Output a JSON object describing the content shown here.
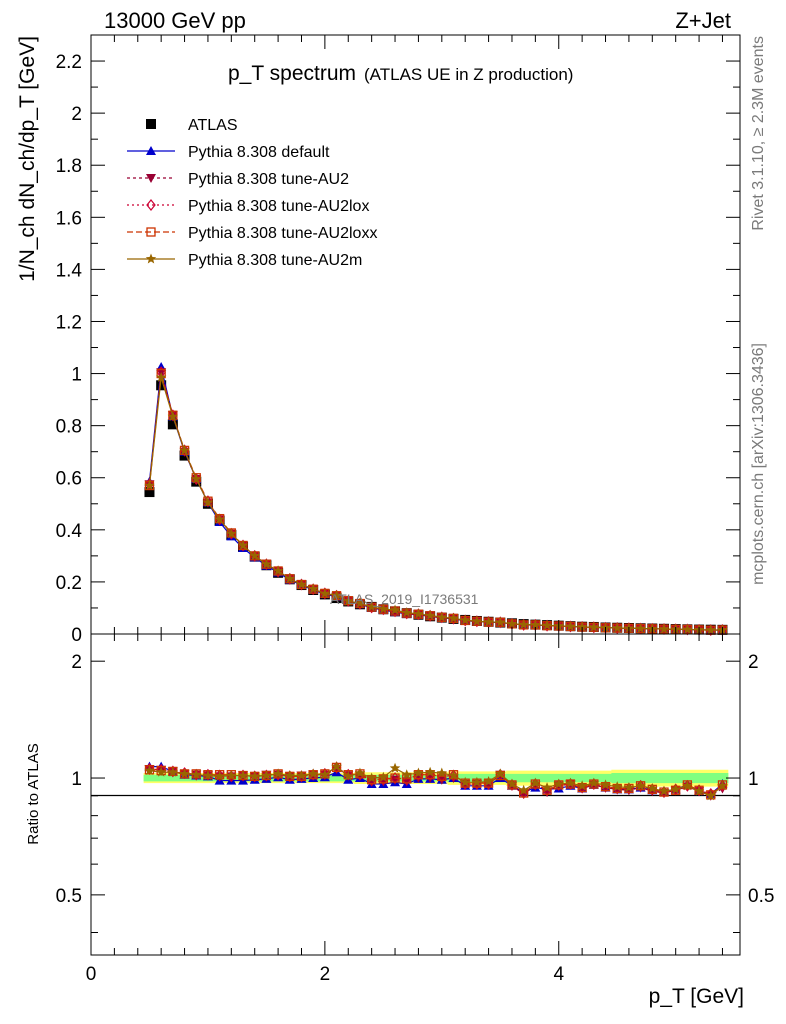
{
  "header": {
    "left": "13000 GeV pp",
    "right": "Z+Jet"
  },
  "side": {
    "upper": "Rivet 3.1.10, ≥ 2.3M events",
    "lower": "mcplots.cern.ch [arXiv:1306.3436]"
  },
  "watermark": "ATLAS_2019_I1736531",
  "chart_data": [
    {
      "type": "line",
      "title": "p_T spectrum",
      "subtitle": "(ATLAS UE in Z production)",
      "ylabel": "1/N_ch dN_ch/dp_T [GeV]",
      "xlabel": "p_T [GeV]",
      "xlim": [
        0,
        5.55
      ],
      "ylim": [
        0,
        2.3
      ],
      "yticks": [
        "0",
        "0.2",
        "0.4",
        "0.6",
        "0.8",
        "1",
        "1.2",
        "1.4",
        "1.6",
        "1.8",
        "2",
        "2.2"
      ],
      "xticks": [
        "0",
        "2",
        "4"
      ],
      "legend_position": "top-left",
      "x": [
        0.5,
        0.6,
        0.7,
        0.8,
        0.9,
        1.0,
        1.1,
        1.2,
        1.3,
        1.4,
        1.5,
        1.6,
        1.7,
        1.8,
        1.9,
        2.0,
        2.1,
        2.2,
        2.3,
        2.4,
        2.5,
        2.6,
        2.7,
        2.8,
        2.9,
        3.0,
        3.1,
        3.2,
        3.3,
        3.4,
        3.5,
        3.6,
        3.7,
        3.8,
        3.9,
        4.0,
        4.1,
        4.2,
        4.3,
        4.4,
        4.5,
        4.6,
        4.7,
        4.8,
        4.9,
        5.0,
        5.1,
        5.2,
        5.3,
        5.4
      ],
      "series": [
        {
          "name": "ATLAS",
          "color": "#000000",
          "marker": "square",
          "values": [
            0.545,
            0.955,
            0.805,
            0.685,
            0.585,
            0.5,
            0.435,
            0.38,
            0.335,
            0.297,
            0.264,
            0.235,
            0.21,
            0.188,
            0.169,
            0.152,
            0.138,
            0.125,
            0.114,
            0.104,
            0.095,
            0.087,
            0.08,
            0.074,
            0.068,
            0.063,
            0.058,
            0.054,
            0.05,
            0.047,
            0.044,
            0.041,
            0.038,
            0.036,
            0.034,
            0.032,
            0.03,
            0.028,
            0.027,
            0.025,
            0.024,
            0.023,
            0.022,
            0.021,
            0.02,
            0.019,
            0.018,
            0.017,
            0.0165,
            0.016
          ]
        },
        {
          "name": "Pythia 8.308 default",
          "color": "#0000cc",
          "marker": "triangle-up",
          "dash": "",
          "values": [
            0.585,
            1.025,
            0.835,
            0.7,
            0.595,
            0.505,
            0.43,
            0.375,
            0.33,
            0.294,
            0.262,
            0.236,
            0.208,
            0.188,
            0.169,
            0.153,
            0.143,
            0.126,
            0.114,
            0.1,
            0.092,
            0.084,
            0.077,
            0.074,
            0.068,
            0.062,
            0.058,
            0.051,
            0.048,
            0.045,
            0.044,
            0.039,
            0.035,
            0.034,
            0.032,
            0.03,
            0.029,
            0.027,
            0.026,
            0.024,
            0.023,
            0.022,
            0.021,
            0.02,
            0.019,
            0.018,
            0.0175,
            0.016,
            0.015,
            0.0155
          ]
        },
        {
          "name": "Pythia 8.308 tune-AU2",
          "color": "#990033",
          "marker": "triangle-down",
          "dash": "3,3",
          "values": [
            0.575,
            1.005,
            0.84,
            0.7,
            0.595,
            0.505,
            0.44,
            0.385,
            0.34,
            0.3,
            0.27,
            0.24,
            0.212,
            0.191,
            0.173,
            0.155,
            0.146,
            0.127,
            0.116,
            0.102,
            0.093,
            0.086,
            0.078,
            0.074,
            0.068,
            0.062,
            0.058,
            0.052,
            0.048,
            0.045,
            0.045,
            0.039,
            0.035,
            0.034,
            0.032,
            0.03,
            0.029,
            0.027,
            0.026,
            0.024,
            0.023,
            0.022,
            0.021,
            0.02,
            0.019,
            0.018,
            0.017,
            0.016,
            0.015,
            0.015
          ]
        },
        {
          "name": "Pythia 8.308 tune-AU2lox",
          "color": "#cc0033",
          "marker": "diamond",
          "dash": "2,3",
          "values": [
            0.575,
            1.005,
            0.84,
            0.705,
            0.595,
            0.51,
            0.44,
            0.385,
            0.34,
            0.3,
            0.268,
            0.24,
            0.212,
            0.19,
            0.172,
            0.156,
            0.147,
            0.127,
            0.116,
            0.102,
            0.095,
            0.087,
            0.079,
            0.076,
            0.07,
            0.064,
            0.059,
            0.052,
            0.049,
            0.046,
            0.045,
            0.039,
            0.035,
            0.035,
            0.032,
            0.031,
            0.029,
            0.027,
            0.026,
            0.024,
            0.023,
            0.022,
            0.021,
            0.02,
            0.019,
            0.018,
            0.0175,
            0.016,
            0.015,
            0.0155
          ]
        },
        {
          "name": "Pythia 8.308 tune-AU2loxx",
          "color": "#cc3300",
          "marker": "square-open",
          "dash": "6,3",
          "values": [
            0.57,
            1.0,
            0.84,
            0.705,
            0.6,
            0.51,
            0.443,
            0.388,
            0.34,
            0.3,
            0.268,
            0.242,
            0.212,
            0.19,
            0.172,
            0.156,
            0.147,
            0.128,
            0.117,
            0.103,
            0.095,
            0.088,
            0.08,
            0.076,
            0.07,
            0.064,
            0.06,
            0.052,
            0.049,
            0.046,
            0.045,
            0.039,
            0.035,
            0.035,
            0.032,
            0.031,
            0.029,
            0.027,
            0.026,
            0.024,
            0.023,
            0.022,
            0.021,
            0.02,
            0.019,
            0.018,
            0.0175,
            0.016,
            0.0148,
            0.0155
          ]
        },
        {
          "name": "Pythia 8.308 tune-AU2m",
          "color": "#996600",
          "marker": "star",
          "dash": "",
          "values": [
            0.57,
            0.985,
            0.835,
            0.705,
            0.595,
            0.505,
            0.44,
            0.385,
            0.34,
            0.3,
            0.268,
            0.242,
            0.212,
            0.19,
            0.173,
            0.155,
            0.148,
            0.126,
            0.118,
            0.104,
            0.096,
            0.092,
            0.082,
            0.077,
            0.071,
            0.064,
            0.06,
            0.053,
            0.049,
            0.046,
            0.045,
            0.039,
            0.036,
            0.035,
            0.033,
            0.031,
            0.029,
            0.027,
            0.026,
            0.024,
            0.023,
            0.022,
            0.021,
            0.02,
            0.019,
            0.018,
            0.0175,
            0.016,
            0.015,
            0.0155
          ]
        }
      ]
    },
    {
      "type": "line",
      "ylabel": "Ratio to ATLAS",
      "xlabel": "p_T [GeV]",
      "ylim": [
        0.35,
        2.35
      ],
      "yscale": "log",
      "yticks": [
        "0.5",
        "1",
        "2"
      ],
      "band_inner": "#80ff80",
      "band_outer": "#ffff66",
      "band_inner_halfwidth": [
        0.02,
        0.02,
        0.02,
        0.02,
        0.02,
        0.02,
        0.02,
        0.02,
        0.02,
        0.02,
        0.02,
        0.02,
        0.02,
        0.02,
        0.02,
        0.02,
        0.02,
        0.02,
        0.02,
        0.02,
        0.02,
        0.02,
        0.02,
        0.02,
        0.02,
        0.02,
        0.025,
        0.025,
        0.025,
        0.025,
        0.025,
        0.025,
        0.025,
        0.025,
        0.025,
        0.025,
        0.025,
        0.025,
        0.025,
        0.025,
        0.03,
        0.03,
        0.03,
        0.03,
        0.03,
        0.03,
        0.03,
        0.03,
        0.03,
        0.03
      ],
      "band_outer_halfwidth": [
        0.03,
        0.03,
        0.03,
        0.03,
        0.03,
        0.03,
        0.03,
        0.03,
        0.03,
        0.03,
        0.03,
        0.03,
        0.03,
        0.03,
        0.03,
        0.03,
        0.03,
        0.03,
        0.035,
        0.035,
        0.035,
        0.035,
        0.035,
        0.035,
        0.035,
        0.035,
        0.04,
        0.04,
        0.04,
        0.04,
        0.04,
        0.045,
        0.045,
        0.045,
        0.045,
        0.045,
        0.045,
        0.045,
        0.045,
        0.045,
        0.05,
        0.05,
        0.05,
        0.05,
        0.05,
        0.05,
        0.05,
        0.05,
        0.05,
        0.05
      ],
      "series": [
        {
          "name": "Pythia 8.308 default",
          "color": "#0000cc",
          "marker": "triangle-up",
          "dash": "",
          "values": [
            1.07,
            1.07,
            1.04,
            1.02,
            1.015,
            1.01,
            0.985,
            0.985,
            0.985,
            0.99,
            0.995,
            1.005,
            0.99,
            0.995,
            1.0,
            1.005,
            1.035,
            0.99,
            1.0,
            0.965,
            0.965,
            0.975,
            0.965,
            0.995,
            0.995,
            0.99,
            1.0,
            0.955,
            0.955,
            0.955,
            1.0,
            0.955,
            0.92,
            0.945,
            0.935,
            0.94,
            0.955,
            0.94,
            0.96,
            0.945,
            0.935,
            0.935,
            0.945,
            0.93,
            0.925,
            0.935,
            0.96,
            0.925,
            0.91,
            0.965
          ]
        },
        {
          "name": "Pythia 8.308 tune-AU2",
          "color": "#990033",
          "marker": "triangle-down",
          "dash": "3,3",
          "values": [
            1.055,
            1.05,
            1.04,
            1.025,
            1.02,
            1.015,
            1.01,
            1.01,
            1.015,
            1.01,
            1.02,
            1.02,
            1.01,
            1.015,
            1.02,
            1.02,
            1.055,
            1.015,
            1.015,
            0.98,
            0.98,
            0.99,
            0.98,
            1.0,
            1.0,
            0.99,
            1.0,
            0.965,
            0.965,
            0.965,
            1.02,
            0.955,
            0.91,
            0.955,
            0.92,
            0.955,
            0.965,
            0.94,
            0.96,
            0.945,
            0.935,
            0.93,
            0.945,
            0.925,
            0.915,
            0.93,
            0.95,
            0.925,
            0.9,
            0.94
          ]
        },
        {
          "name": "Pythia 8.308 tune-AU2lox",
          "color": "#cc0033",
          "marker": "diamond",
          "dash": "2,3",
          "values": [
            1.055,
            1.05,
            1.04,
            1.03,
            1.02,
            1.02,
            1.015,
            1.01,
            1.015,
            1.01,
            1.015,
            1.02,
            1.01,
            1.01,
            1.02,
            1.025,
            1.065,
            1.02,
            1.02,
            0.985,
            0.99,
            1.0,
            0.99,
            1.02,
            1.02,
            1.01,
            1.015,
            0.965,
            0.965,
            0.965,
            1.02,
            0.96,
            0.915,
            0.965,
            0.93,
            0.96,
            0.965,
            0.945,
            0.965,
            0.95,
            0.94,
            0.94,
            0.955,
            0.935,
            0.92,
            0.935,
            0.955,
            0.93,
            0.91,
            0.955
          ]
        },
        {
          "name": "Pythia 8.308 tune-AU2loxx",
          "color": "#cc3300",
          "marker": "square-open",
          "dash": "6,3",
          "values": [
            1.05,
            1.045,
            1.04,
            1.025,
            1.025,
            1.02,
            1.02,
            1.02,
            1.015,
            1.01,
            1.015,
            1.025,
            1.01,
            1.01,
            1.02,
            1.025,
            1.065,
            1.02,
            1.025,
            0.99,
            0.995,
            1.0,
            0.995,
            1.02,
            1.02,
            1.01,
            1.02,
            0.97,
            0.97,
            0.97,
            1.015,
            0.96,
            0.915,
            0.965,
            0.93,
            0.96,
            0.965,
            0.945,
            0.965,
            0.95,
            0.94,
            0.94,
            0.955,
            0.935,
            0.92,
            0.93,
            0.96,
            0.93,
            0.905,
            0.96
          ]
        },
        {
          "name": "Pythia 8.308 tune-AU2m",
          "color": "#996600",
          "marker": "star",
          "dash": "",
          "values": [
            1.045,
            1.035,
            1.035,
            1.025,
            1.02,
            1.015,
            1.01,
            1.015,
            1.015,
            1.01,
            1.015,
            1.025,
            1.015,
            1.015,
            1.025,
            1.02,
            1.07,
            1.01,
            1.03,
            1.0,
            1.005,
            1.06,
            1.02,
            1.03,
            1.035,
            1.03,
            1.015,
            0.975,
            0.975,
            0.98,
            1.025,
            0.965,
            0.93,
            0.97,
            0.945,
            0.965,
            0.97,
            0.955,
            0.97,
            0.96,
            0.95,
            0.945,
            0.955,
            0.94,
            0.925,
            0.935,
            0.955,
            0.925,
            0.9,
            0.955
          ]
        }
      ]
    }
  ]
}
